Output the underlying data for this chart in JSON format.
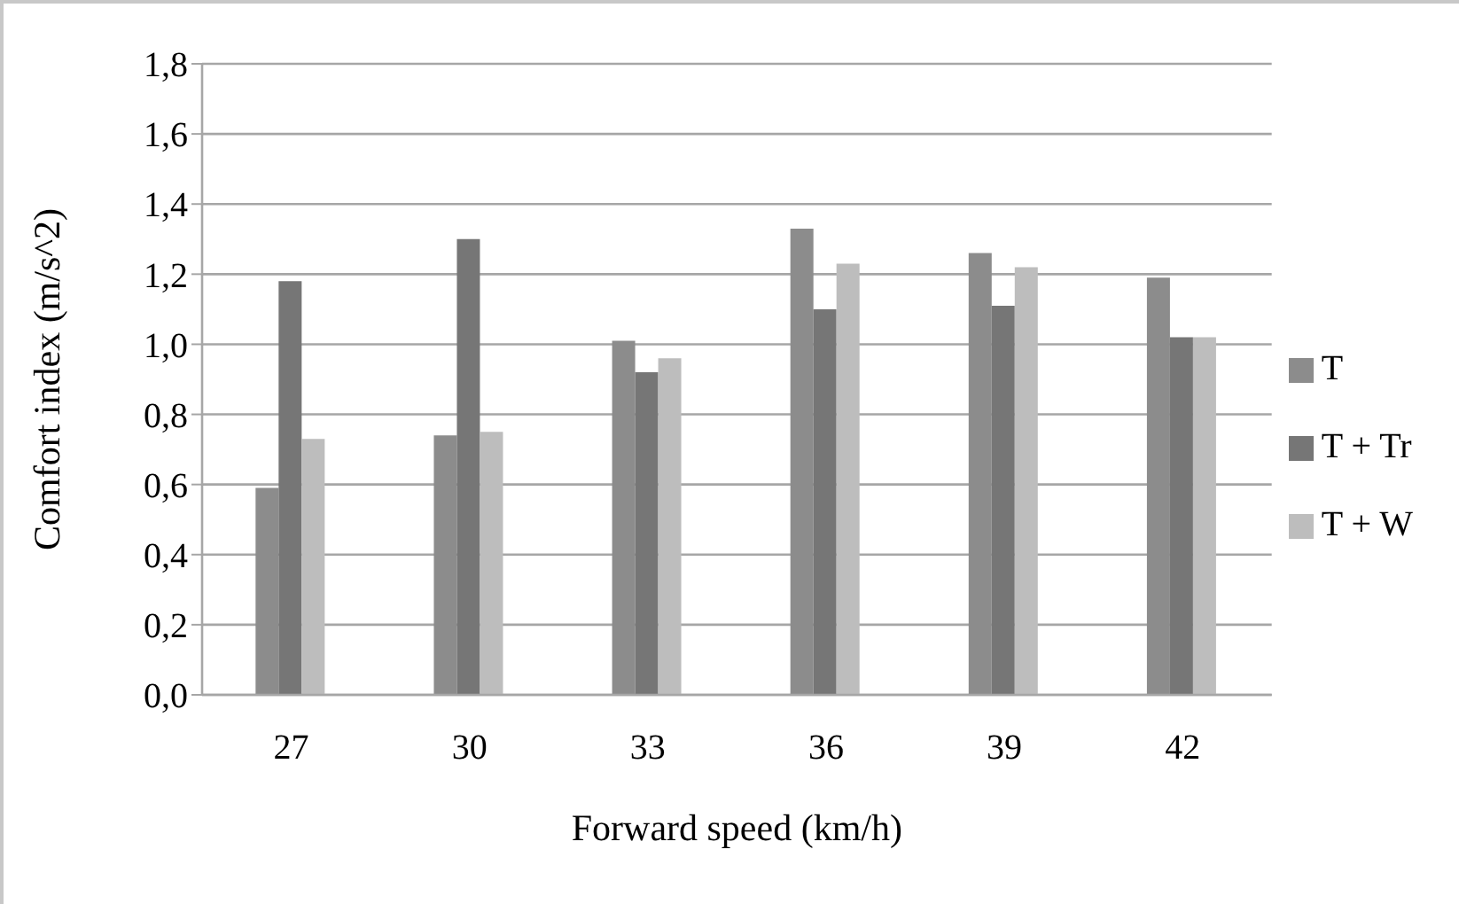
{
  "chart_data": {
    "type": "bar",
    "xlabel": "Forward speed (km/h)",
    "ylabel": "Comfort index (m/s^2)",
    "categories": [
      "27",
      "30",
      "33",
      "36",
      "39",
      "42"
    ],
    "series": [
      {
        "name": "T",
        "color": "#8c8c8c",
        "values": [
          0.59,
          0.74,
          1.01,
          1.33,
          1.26,
          1.19
        ]
      },
      {
        "name": "T + Tr",
        "color": "#767676",
        "values": [
          1.18,
          1.3,
          0.92,
          1.1,
          1.11,
          1.02
        ]
      },
      {
        "name": "T + W",
        "color": "#bdbdbd",
        "values": [
          0.73,
          0.75,
          0.96,
          1.23,
          1.22,
          1.02
        ]
      }
    ],
    "ylim": [
      0,
      1.8
    ],
    "yticks": [
      {
        "value": 0,
        "label": "0,0"
      },
      {
        "value": 0.2,
        "label": "0,2"
      },
      {
        "value": 0.4,
        "label": "0,4"
      },
      {
        "value": 0.6,
        "label": "0,6"
      },
      {
        "value": 0.8,
        "label": "0,8"
      },
      {
        "value": 1,
        "label": "1,0"
      },
      {
        "value": 1.2,
        "label": "1,2"
      },
      {
        "value": 1.4,
        "label": "1,4"
      },
      {
        "value": 1.6,
        "label": "1,6"
      },
      {
        "value": 1.8,
        "label": "1,8"
      }
    ],
    "grid": "y",
    "legend": "right"
  }
}
